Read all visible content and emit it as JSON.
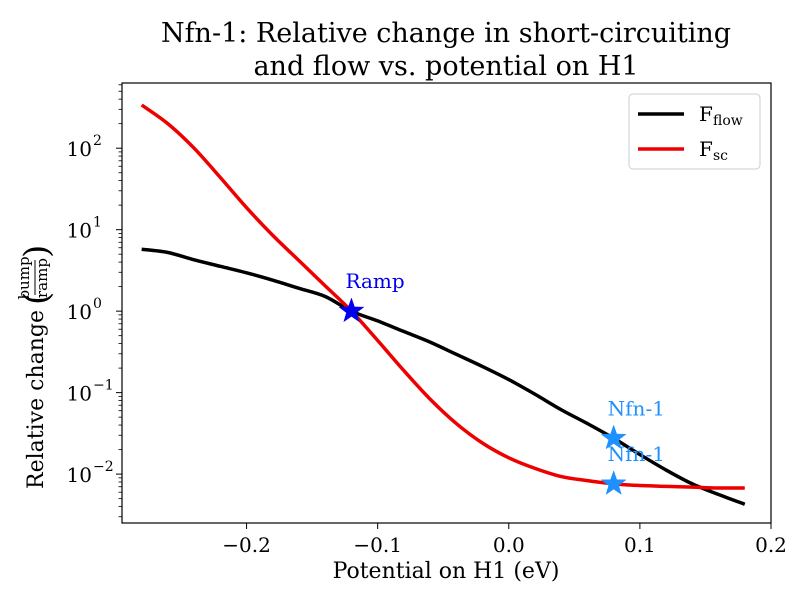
{
  "chart_data": {
    "type": "line",
    "title_line1": "Nfn-1: Relative change in short-circuiting",
    "title_line2": "and flow vs. potential on H1",
    "xlabel": "Potential on H1 (eV)",
    "ylabel_prefix": "Relative change",
    "ylabel_frac_num": "bump",
    "ylabel_frac_den": "ramp",
    "y_scale": "log",
    "xlim": [
      -0.295,
      0.2
    ],
    "ylim_log10": [
      -2.6,
      2.8
    ],
    "x_ticks": [
      {
        "value": -0.2,
        "label": "−0.2"
      },
      {
        "value": -0.1,
        "label": "−0.1"
      },
      {
        "value": 0.0,
        "label": "0.0"
      },
      {
        "value": 0.1,
        "label": "0.1"
      },
      {
        "value": 0.2,
        "label": "0.2"
      }
    ],
    "y_ticks": [
      {
        "exp": -2,
        "base": "10",
        "sup": "−2"
      },
      {
        "exp": -1,
        "base": "10",
        "sup": "−1"
      },
      {
        "exp": 0,
        "base": "10",
        "sup": "0"
      },
      {
        "exp": 1,
        "base": "10",
        "sup": "1"
      },
      {
        "exp": 2,
        "base": "10",
        "sup": "2"
      }
    ],
    "legend_position": "top-right",
    "series": [
      {
        "name_base": "F",
        "name_sub": "flow",
        "color": "#000000",
        "x": [
          -0.28,
          -0.26,
          -0.24,
          -0.22,
          -0.2,
          -0.18,
          -0.16,
          -0.14,
          -0.12,
          -0.1,
          -0.08,
          -0.06,
          -0.04,
          -0.02,
          0.0,
          0.02,
          0.04,
          0.06,
          0.08,
          0.1,
          0.12,
          0.14,
          0.16,
          0.18
        ],
        "log10_y": [
          0.76,
          0.72,
          0.63,
          0.55,
          0.47,
          0.38,
          0.28,
          0.18,
          0.0,
          -0.12,
          -0.25,
          -0.38,
          -0.53,
          -0.68,
          -0.84,
          -1.02,
          -1.21,
          -1.38,
          -1.56,
          -1.76,
          -1.95,
          -2.12,
          -2.25,
          -2.37
        ]
      },
      {
        "name_base": "F",
        "name_sub": "sc",
        "color": "#ee0000",
        "x": [
          -0.28,
          -0.26,
          -0.24,
          -0.22,
          -0.2,
          -0.18,
          -0.16,
          -0.14,
          -0.12,
          -0.1,
          -0.08,
          -0.06,
          -0.04,
          -0.02,
          0.0,
          0.02,
          0.04,
          0.06,
          0.08,
          0.1,
          0.12,
          0.14,
          0.16,
          0.18
        ],
        "log10_y": [
          2.53,
          2.3,
          2.0,
          1.64,
          1.27,
          0.93,
          0.62,
          0.31,
          0.0,
          -0.36,
          -0.73,
          -1.08,
          -1.38,
          -1.62,
          -1.8,
          -1.93,
          -2.03,
          -2.08,
          -2.12,
          -2.14,
          -2.15,
          -2.16,
          -2.17,
          -2.17
        ]
      }
    ],
    "annotations": [
      {
        "label": "Ramp",
        "x": -0.12,
        "log10_y": 0.0,
        "color": "#0000ee"
      },
      {
        "label": "Nfn-1",
        "x": 0.08,
        "log10_y": -1.56,
        "color": "#1e90ff"
      },
      {
        "label": "Nfn-1",
        "x": 0.08,
        "log10_y": -2.12,
        "color": "#1e90ff"
      }
    ]
  }
}
